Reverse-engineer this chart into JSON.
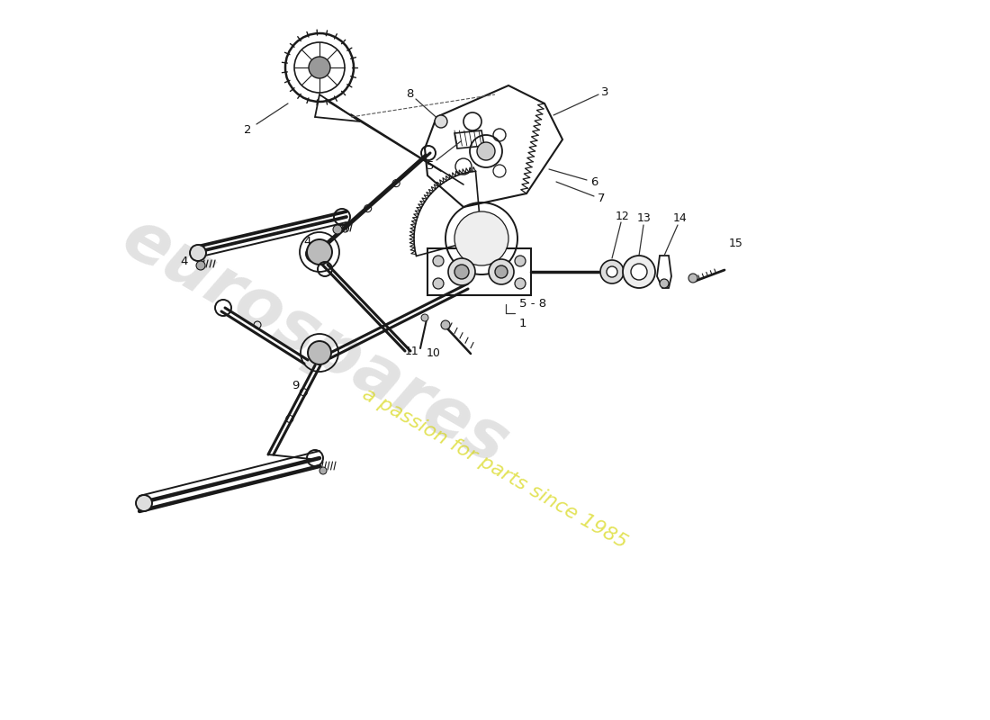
{
  "bg_color": "#ffffff",
  "line_color": "#1a1a1a",
  "lw_main": 1.4,
  "lw_thick": 2.2,
  "lw_thin": 0.9,
  "watermark1": "eurospares",
  "watermark2": "a passion for parts since 1985",
  "wm1_color": "#b8b8b8",
  "wm2_color": "#d4d400",
  "label_fs": 9.5,
  "label_color": "#111111"
}
